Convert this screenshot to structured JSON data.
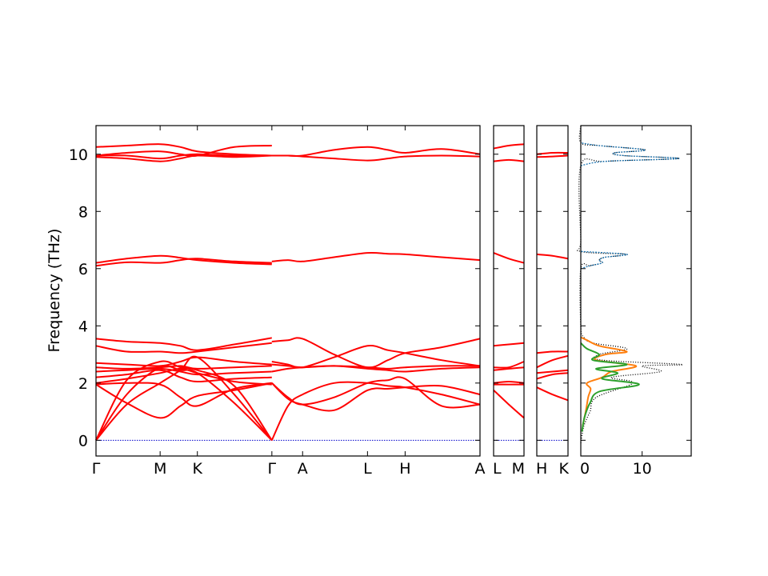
{
  "chart_data": {
    "type": "line",
    "ylabel": "Frequency (THz)",
    "ylim": [
      -0.55,
      11.0
    ],
    "yticks": [
      0,
      2,
      4,
      6,
      8,
      10
    ],
    "colors": {
      "bands": "#ff0000",
      "zero_line": "#0000cc",
      "dos_total": "#000000",
      "dos_1": "#1f77b4",
      "dos_2": "#ff7f0e",
      "dos_3": "#2ca02c"
    },
    "band_panels": [
      {
        "name": "Γ-M-K-Γ-A-L-H-A",
        "ticks": [
          {
            "label": "Γ",
            "x": 0.0
          },
          {
            "label": "M",
            "x": 0.167
          },
          {
            "label": "K",
            "x": 0.264
          },
          {
            "label": "Γ",
            "x": 0.458
          },
          {
            "label": "A",
            "x": 0.538
          },
          {
            "label": "L",
            "x": 0.707
          },
          {
            "label": "H",
            "x": 0.805
          },
          {
            "label": "A",
            "x": 1.0
          }
        ],
        "bands": [
          {
            "x": [
              0,
              0.08,
              0.167,
              0.22,
              0.264,
              0.36,
              0.458
            ],
            "y": [
              0,
              1.25,
              2.0,
              2.45,
              2.9,
              1.6,
              0
            ]
          },
          {
            "x": [
              0,
              0.08,
              0.167,
              0.22,
              0.264,
              0.36,
              0.458
            ],
            "y": [
              0,
              1.6,
              2.55,
              2.45,
              2.35,
              1.3,
              0
            ]
          },
          {
            "x": [
              0,
              0.08,
              0.167,
              0.22,
              0.264,
              0.36,
              0.458
            ],
            "y": [
              0,
              2.1,
              2.75,
              2.55,
              2.45,
              1.9,
              0
            ]
          },
          {
            "x": [
              0,
              0.08,
              0.167,
              0.22,
              0.264,
              0.36,
              0.458
            ],
            "y": [
              1.95,
              1.3,
              0.78,
              1.2,
              1.55,
              1.75,
              2.0
            ]
          },
          {
            "x": [
              0,
              0.08,
              0.167,
              0.22,
              0.264,
              0.36,
              0.458
            ],
            "y": [
              1.95,
              2.0,
              1.95,
              1.5,
              1.2,
              1.8,
              2.0
            ]
          },
          {
            "x": [
              0,
              0.08,
              0.167,
              0.22,
              0.264,
              0.36,
              0.458
            ],
            "y": [
              2.0,
              2.15,
              2.35,
              2.5,
              2.35,
              2.05,
              1.95
            ]
          },
          {
            "x": [
              0,
              0.08,
              0.167,
              0.22,
              0.264,
              0.36,
              0.458
            ],
            "y": [
              2.2,
              2.3,
              2.45,
              2.2,
              2.05,
              2.15,
              2.2
            ]
          },
          {
            "x": [
              0,
              0.08,
              0.167,
              0.22,
              0.264,
              0.36,
              0.458
            ],
            "y": [
              2.4,
              2.45,
              2.5,
              2.4,
              2.3,
              2.35,
              2.4
            ]
          },
          {
            "x": [
              0,
              0.08,
              0.167,
              0.22,
              0.264,
              0.36,
              0.458
            ],
            "y": [
              2.55,
              2.5,
              2.55,
              2.6,
              2.5,
              2.55,
              2.6
            ]
          },
          {
            "x": [
              0,
              0.08,
              0.167,
              0.22,
              0.264,
              0.36,
              0.458
            ],
            "y": [
              2.7,
              2.65,
              2.6,
              2.75,
              2.9,
              2.75,
              2.65
            ]
          },
          {
            "x": [
              0,
              0.08,
              0.167,
              0.22,
              0.264,
              0.36,
              0.458
            ],
            "y": [
              3.3,
              3.1,
              3.1,
              3.05,
              3.1,
              3.25,
              3.4
            ]
          },
          {
            "x": [
              0,
              0.08,
              0.167,
              0.22,
              0.264,
              0.36,
              0.458
            ],
            "y": [
              3.55,
              3.45,
              3.4,
              3.3,
              3.15,
              3.35,
              3.58
            ]
          },
          {
            "x": [
              0,
              0.08,
              0.167,
              0.22,
              0.264,
              0.36,
              0.458
            ],
            "y": [
              6.1,
              6.22,
              6.2,
              6.3,
              6.35,
              6.25,
              6.2
            ]
          },
          {
            "x": [
              0,
              0.08,
              0.167,
              0.22,
              0.264,
              0.36,
              0.458
            ],
            "y": [
              6.2,
              6.35,
              6.45,
              6.38,
              6.3,
              6.2,
              6.15
            ]
          },
          {
            "x": [
              0,
              0.08,
              0.167,
              0.22,
              0.264,
              0.36,
              0.458
            ],
            "y": [
              9.9,
              9.85,
              9.75,
              9.85,
              9.95,
              9.9,
              9.95
            ]
          },
          {
            "x": [
              0,
              0.08,
              0.167,
              0.22,
              0.264,
              0.36,
              0.458
            ],
            "y": [
              9.95,
              9.95,
              9.85,
              9.95,
              10.0,
              9.95,
              9.95
            ]
          },
          {
            "x": [
              0,
              0.08,
              0.167,
              0.22,
              0.264,
              0.36,
              0.458
            ],
            "y": [
              9.95,
              10.05,
              10.1,
              10.0,
              9.95,
              10.25,
              10.3
            ]
          },
          {
            "x": [
              0,
              0.08,
              0.167,
              0.22,
              0.264,
              0.36,
              0.458
            ],
            "y": [
              10.25,
              10.3,
              10.35,
              10.25,
              10.1,
              10.0,
              9.95
            ]
          },
          {
            "x": [
              0.458,
              0.5,
              0.538,
              0.62,
              0.707,
              0.76,
              0.805,
              0.9,
              1.0
            ],
            "y": [
              0,
              1.2,
              1.6,
              2.0,
              2.0,
              1.9,
              1.85,
              1.6,
              1.25
            ]
          },
          {
            "x": [
              0.458,
              0.5,
              0.538,
              0.62,
              0.707,
              0.76,
              0.805,
              0.9,
              1.0
            ],
            "y": [
              2.0,
              1.45,
              1.25,
              1.05,
              1.75,
              1.8,
              1.85,
              1.9,
              1.6
            ]
          },
          {
            "x": [
              0.458,
              0.5,
              0.538,
              0.62,
              0.707,
              0.76,
              0.805,
              0.9,
              1.0
            ],
            "y": [
              2.0,
              1.5,
              1.25,
              1.5,
              2.0,
              2.1,
              2.15,
              1.2,
              1.25
            ]
          },
          {
            "x": [
              0.458,
              0.5,
              0.538,
              0.62,
              0.707,
              0.76,
              0.805,
              0.9,
              1.0
            ],
            "y": [
              2.4,
              2.5,
              2.55,
              2.6,
              2.5,
              2.45,
              2.4,
              2.5,
              2.55
            ]
          },
          {
            "x": [
              0.458,
              0.5,
              0.538,
              0.62,
              0.707,
              0.76,
              0.805,
              0.9,
              1.0
            ],
            "y": [
              2.65,
              2.6,
              2.55,
              2.6,
              2.55,
              2.5,
              2.55,
              2.6,
              2.6
            ]
          },
          {
            "x": [
              0.458,
              0.5,
              0.538,
              0.62,
              0.707,
              0.76,
              0.805,
              0.9,
              1.0
            ],
            "y": [
              2.75,
              2.65,
              2.55,
              2.9,
              3.3,
              3.15,
              3.05,
              2.8,
              2.6
            ]
          },
          {
            "x": [
              0.458,
              0.5,
              0.538,
              0.62,
              0.707,
              0.76,
              0.805,
              0.9,
              1.0
            ],
            "y": [
              3.45,
              3.5,
              3.55,
              3.0,
              2.55,
              2.8,
              3.05,
              3.25,
              3.55
            ]
          },
          {
            "x": [
              0.458,
              0.5,
              0.538,
              0.62,
              0.707,
              0.76,
              0.805,
              0.9,
              1.0
            ],
            "y": [
              6.25,
              6.3,
              6.25,
              6.4,
              6.55,
              6.52,
              6.5,
              6.4,
              6.3
            ]
          },
          {
            "x": [
              0.458,
              0.5,
              0.538,
              0.62,
              0.707,
              0.76,
              0.805,
              0.9,
              1.0
            ],
            "y": [
              9.95,
              9.95,
              9.92,
              9.85,
              9.78,
              9.85,
              9.92,
              9.95,
              9.92
            ]
          },
          {
            "x": [
              0.458,
              0.5,
              0.538,
              0.62,
              0.707,
              0.76,
              0.805,
              0.9,
              1.0
            ],
            "y": [
              9.95,
              9.95,
              9.95,
              10.15,
              10.25,
              10.15,
              10.05,
              10.18,
              10.0
            ]
          }
        ]
      },
      {
        "name": "L-M",
        "ticks": [
          {
            "label": "L",
            "x": 0.0
          },
          {
            "label": "M",
            "x": 1.0
          }
        ],
        "bands": [
          {
            "x": [
              0,
              0.5,
              1
            ],
            "y": [
              1.75,
              1.25,
              0.78
            ]
          },
          {
            "x": [
              0,
              0.5,
              1
            ],
            "y": [
              1.95,
              1.95,
              1.95
            ]
          },
          {
            "x": [
              0,
              0.5,
              1
            ],
            "y": [
              2.0,
              2.05,
              2.0
            ]
          },
          {
            "x": [
              0,
              0.5,
              1
            ],
            "y": [
              2.45,
              2.5,
              2.55
            ]
          },
          {
            "x": [
              0,
              0.5,
              1
            ],
            "y": [
              2.55,
              2.55,
              2.75
            ]
          },
          {
            "x": [
              0,
              0.5,
              1
            ],
            "y": [
              3.3,
              3.35,
              3.4
            ]
          },
          {
            "x": [
              0,
              0.5,
              1
            ],
            "y": [
              6.55,
              6.35,
              6.2
            ]
          },
          {
            "x": [
              0,
              0.5,
              1
            ],
            "y": [
              9.75,
              9.8,
              9.75
            ]
          },
          {
            "x": [
              0,
              0.5,
              1
            ],
            "y": [
              10.2,
              10.3,
              10.35
            ]
          }
        ]
      },
      {
        "name": "H-K",
        "ticks": [
          {
            "label": "H",
            "x": 0.0
          },
          {
            "label": "K",
            "x": 1.0
          }
        ],
        "bands": [
          {
            "x": [
              0,
              0.5,
              1
            ],
            "y": [
              1.85,
              1.6,
              1.4
            ]
          },
          {
            "x": [
              0,
              0.5,
              1
            ],
            "y": [
              2.15,
              2.3,
              2.35
            ]
          },
          {
            "x": [
              0,
              0.5,
              1
            ],
            "y": [
              2.35,
              2.4,
              2.45
            ]
          },
          {
            "x": [
              0,
              0.5,
              1
            ],
            "y": [
              2.55,
              2.8,
              2.95
            ]
          },
          {
            "x": [
              0,
              0.5,
              1
            ],
            "y": [
              3.05,
              3.1,
              3.1
            ]
          },
          {
            "x": [
              0,
              0.5,
              1
            ],
            "y": [
              6.5,
              6.45,
              6.35
            ]
          },
          {
            "x": [
              0,
              0.5,
              1
            ],
            "y": [
              9.9,
              9.92,
              9.95
            ]
          },
          {
            "x": [
              0,
              0.5,
              1
            ],
            "y": [
              10.0,
              10.05,
              10.05
            ]
          }
        ]
      }
    ],
    "dos_panel": {
      "xlim": [
        0,
        18
      ],
      "xticks": [
        0,
        10
      ],
      "series": [
        {
          "color": "#000000",
          "dotted": true,
          "freq": [
            -0.1,
            0.5,
            1.0,
            1.5,
            2.0,
            2.2,
            2.4,
            2.6,
            2.65,
            2.8,
            3.0,
            3.2,
            3.4,
            3.6,
            4.0,
            6.0,
            6.1,
            6.2,
            6.3,
            6.4,
            6.5,
            6.6,
            7.0,
            9.6,
            9.75,
            9.85,
            9.95,
            10.05,
            10.15,
            10.3,
            10.4,
            11.0
          ],
          "dos": [
            0,
            0.5,
            1.5,
            2.5,
            8.5,
            5.0,
            13.0,
            10.0,
            16.5,
            3.5,
            3.0,
            7.5,
            2.0,
            0.5,
            0,
            0,
            1.5,
            3.5,
            3.0,
            4.0,
            7.5,
            0,
            0,
            0,
            4.0,
            16.0,
            7.0,
            5.5,
            10.5,
            3.0,
            0,
            0
          ]
        },
        {
          "color": "#1f77b4",
          "dotted": true,
          "freq": [
            9.6,
            9.75,
            9.85,
            9.95,
            10.05,
            10.15,
            10.3,
            10.4,
            6.0,
            6.1,
            6.2,
            6.3,
            6.4,
            6.5,
            6.6
          ],
          "dos": [
            0,
            4.0,
            16.0,
            7.0,
            5.5,
            10.5,
            3.0,
            0,
            0,
            1.5,
            3.5,
            3.0,
            4.0,
            7.5,
            0
          ]
        },
        {
          "color": "#ff7f0e",
          "dotted": false,
          "freq": [
            0.5,
            1.0,
            1.5,
            1.8,
            2.0,
            2.2,
            2.4,
            2.6,
            2.8,
            3.0,
            3.1,
            3.3,
            3.5,
            3.6
          ],
          "dos": [
            0.3,
            0.8,
            1.2,
            1.6,
            1.0,
            3.5,
            5.0,
            9.0,
            2.5,
            4.0,
            7.5,
            3.0,
            1.0,
            0
          ]
        },
        {
          "color": "#2ca02c",
          "dotted": false,
          "freq": [
            0.3,
            0.8,
            1.3,
            1.7,
            1.95,
            2.15,
            2.35,
            2.5,
            2.65,
            2.8,
            3.0,
            3.2,
            3.4
          ],
          "dos": [
            0.2,
            0.6,
            1.5,
            3.0,
            9.5,
            3.5,
            6.0,
            2.5,
            7.5,
            2.0,
            3.0,
            1.0,
            0
          ]
        }
      ]
    }
  }
}
